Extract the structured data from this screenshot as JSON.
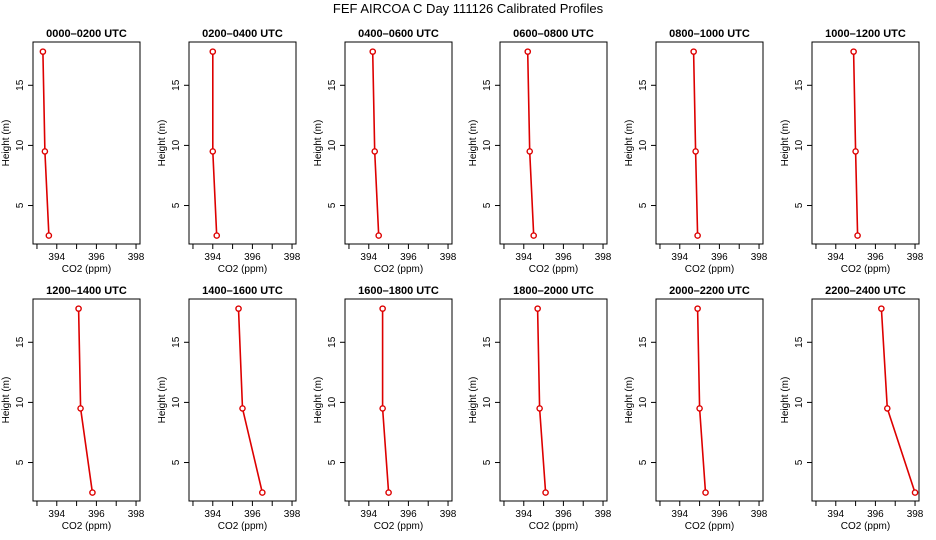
{
  "chart_data": {
    "type": "line",
    "title": "FEF AIRCOA C  Day 111126  Calibrated Profiles",
    "xlabel": "CO2 (ppm)",
    "ylabel": "Height (m)",
    "xlim": [
      392.8,
      398.2
    ],
    "ylim": [
      1.8,
      18.6
    ],
    "xticks": [
      394,
      396,
      398
    ],
    "x_minor_ticks": [
      393,
      395,
      397
    ],
    "yticks": [
      5,
      10,
      15
    ],
    "line_color": "#dd0000",
    "panels": [
      {
        "title": "0000–0200 UTC",
        "points": [
          {
            "x": 393.3,
            "y": 17.8
          },
          {
            "x": 393.4,
            "y": 9.5
          },
          {
            "x": 393.6,
            "y": 2.5
          }
        ]
      },
      {
        "title": "0200–0400 UTC",
        "points": [
          {
            "x": 394.0,
            "y": 17.8
          },
          {
            "x": 394.0,
            "y": 9.5
          },
          {
            "x": 394.2,
            "y": 2.5
          }
        ]
      },
      {
        "title": "0400–0600 UTC",
        "points": [
          {
            "x": 394.2,
            "y": 17.8
          },
          {
            "x": 394.3,
            "y": 9.5
          },
          {
            "x": 394.5,
            "y": 2.5
          }
        ]
      },
      {
        "title": "0600–0800 UTC",
        "points": [
          {
            "x": 394.2,
            "y": 17.8
          },
          {
            "x": 394.3,
            "y": 9.5
          },
          {
            "x": 394.5,
            "y": 2.5
          }
        ]
      },
      {
        "title": "0800–1000 UTC",
        "points": [
          {
            "x": 394.7,
            "y": 17.8
          },
          {
            "x": 394.8,
            "y": 9.5
          },
          {
            "x": 394.9,
            "y": 2.5
          }
        ]
      },
      {
        "title": "1000–1200 UTC",
        "points": [
          {
            "x": 394.9,
            "y": 17.8
          },
          {
            "x": 395.0,
            "y": 9.5
          },
          {
            "x": 395.1,
            "y": 2.5
          }
        ]
      },
      {
        "title": "1200–1400 UTC",
        "points": [
          {
            "x": 395.1,
            "y": 17.8
          },
          {
            "x": 395.2,
            "y": 9.5
          },
          {
            "x": 395.8,
            "y": 2.5
          }
        ]
      },
      {
        "title": "1400–1600 UTC",
        "points": [
          {
            "x": 395.3,
            "y": 17.8
          },
          {
            "x": 395.5,
            "y": 9.5
          },
          {
            "x": 396.5,
            "y": 2.5
          }
        ]
      },
      {
        "title": "1600–1800 UTC",
        "points": [
          {
            "x": 394.7,
            "y": 17.8
          },
          {
            "x": 394.7,
            "y": 9.5
          },
          {
            "x": 395.0,
            "y": 2.5
          }
        ]
      },
      {
        "title": "1800–2000 UTC",
        "points": [
          {
            "x": 394.7,
            "y": 17.8
          },
          {
            "x": 394.8,
            "y": 9.5
          },
          {
            "x": 395.1,
            "y": 2.5
          }
        ]
      },
      {
        "title": "2000–2200 UTC",
        "points": [
          {
            "x": 394.9,
            "y": 17.8
          },
          {
            "x": 395.0,
            "y": 9.5
          },
          {
            "x": 395.3,
            "y": 2.5
          }
        ]
      },
      {
        "title": "2200–2400 UTC",
        "points": [
          {
            "x": 396.3,
            "y": 17.8
          },
          {
            "x": 396.6,
            "y": 9.5
          },
          {
            "x": 398.0,
            "y": 2.5
          }
        ]
      }
    ]
  }
}
